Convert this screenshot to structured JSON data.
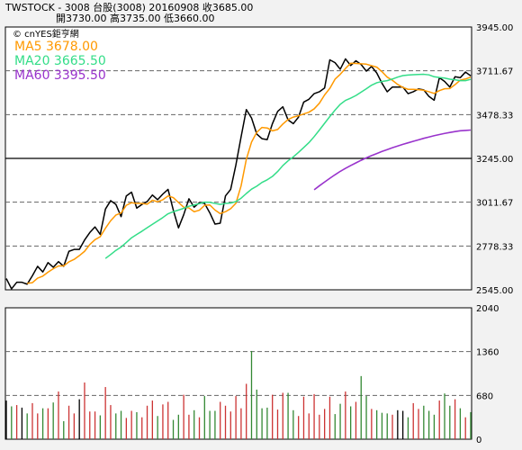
{
  "header": {
    "line1": "TWSTOCK  - 3008  台股(3008)  20160908    收3685.00",
    "line2": "開3730.00     高3735.00     低3660.00"
  },
  "legend": {
    "brand": "© cnYES鉅亨網",
    "ma5": "MA5 3678.00",
    "ma20": "MA20 3665.50",
    "ma60": "MA60 3395.50"
  },
  "colors": {
    "price": "#000000",
    "ma5": "#ff9900",
    "ma20": "#33dd88",
    "ma60": "#9933cc",
    "vol_up": "#cc3333",
    "vol_down": "#338833",
    "vol_flat": "#000000"
  },
  "chart_data": [
    {
      "type": "line",
      "ylim": [
        2545,
        3945
      ],
      "yticks": [
        "3945.00",
        "3711.67",
        "3478.33",
        "3245.00",
        "3011.67",
        "2778.33",
        "2545.00"
      ],
      "ytick_values": [
        3945,
        3711.67,
        3478.33,
        3245,
        3011.67,
        2778.33,
        2545
      ],
      "series": [
        {
          "name": "Price",
          "values": [
            2605,
            2550,
            2585,
            2585,
            2575,
            2620,
            2670,
            2640,
            2690,
            2665,
            2695,
            2670,
            2750,
            2760,
            2760,
            2810,
            2850,
            2880,
            2840,
            2975,
            3020,
            3000,
            2935,
            3045,
            3065,
            2980,
            3000,
            3015,
            3050,
            3025,
            3055,
            3080,
            2970,
            2875,
            2945,
            3030,
            2985,
            3010,
            3005,
            2955,
            2895,
            2900,
            3045,
            3080,
            3210,
            3360,
            3505,
            3460,
            3375,
            3350,
            3345,
            3430,
            3495,
            3520,
            3450,
            3430,
            3465,
            3545,
            3560,
            3590,
            3600,
            3620,
            3770,
            3755,
            3720,
            3775,
            3740,
            3765,
            3745,
            3710,
            3735,
            3700,
            3645,
            3600,
            3625,
            3625,
            3625,
            3590,
            3600,
            3615,
            3610,
            3575,
            3555,
            3675,
            3655,
            3625,
            3680,
            3675,
            3705,
            3685
          ]
        },
        {
          "name": "MA5",
          "values": [
            null,
            null,
            null,
            null,
            2580,
            2583,
            2607,
            2618,
            2639,
            2657,
            2672,
            2672,
            2694,
            2707,
            2727,
            2750,
            2786,
            2812,
            2828,
            2873,
            2913,
            2943,
            2954,
            2995,
            3009,
            3005,
            3005,
            3001,
            3022,
            3014,
            3025,
            3045,
            3036,
            3010,
            2985,
            2981,
            2961,
            2969,
            2995,
            2997,
            2970,
            2951,
            2961,
            2977,
            3006,
            3099,
            3240,
            3332,
            3384,
            3410,
            3407,
            3392,
            3399,
            3428,
            3452,
            3465,
            3472,
            3482,
            3491,
            3509,
            3539,
            3583,
            3618,
            3667,
            3693,
            3724,
            3752,
            3751,
            3749,
            3747,
            3739,
            3731,
            3707,
            3678,
            3661,
            3639,
            3623,
            3613,
            3613,
            3611,
            3608,
            3600,
            3591,
            3606,
            3616,
            3617,
            3638,
            3662,
            3668,
            3678
          ]
        },
        {
          "name": "MA20",
          "values": [
            null,
            null,
            null,
            null,
            null,
            null,
            null,
            null,
            null,
            null,
            null,
            null,
            null,
            null,
            null,
            null,
            null,
            null,
            null,
            2712,
            2733,
            2755,
            2773,
            2797,
            2822,
            2840,
            2857,
            2876,
            2894,
            2912,
            2930,
            2950,
            2961,
            2970,
            2979,
            2990,
            2997,
            3004,
            3012,
            3011,
            3005,
            3000,
            3005,
            3007,
            3015,
            3033,
            3058,
            3081,
            3097,
            3117,
            3131,
            3149,
            3175,
            3207,
            3232,
            3253,
            3277,
            3303,
            3329,
            3361,
            3396,
            3432,
            3468,
            3502,
            3533,
            3554,
            3566,
            3580,
            3598,
            3616,
            3635,
            3648,
            3655,
            3659,
            3668,
            3678,
            3686,
            3689,
            3691,
            3692,
            3693,
            3690,
            3680,
            3676,
            3673,
            3667,
            3664,
            3659,
            3659,
            3666
          ]
        },
        {
          "name": "MA60",
          "values": [
            null,
            null,
            null,
            null,
            null,
            null,
            null,
            null,
            null,
            null,
            null,
            null,
            null,
            null,
            null,
            null,
            null,
            null,
            null,
            null,
            null,
            null,
            null,
            null,
            null,
            null,
            null,
            null,
            null,
            null,
            null,
            null,
            null,
            null,
            null,
            null,
            null,
            null,
            null,
            null,
            null,
            null,
            null,
            null,
            null,
            null,
            null,
            null,
            null,
            null,
            null,
            null,
            null,
            null,
            null,
            null,
            null,
            null,
            null,
            3078,
            3099,
            3119,
            3139,
            3158,
            3176,
            3192,
            3207,
            3221,
            3235,
            3248,
            3260,
            3271,
            3282,
            3292,
            3302,
            3311,
            3320,
            3328,
            3336,
            3344,
            3352,
            3359,
            3366,
            3372,
            3378,
            3383,
            3388,
            3392,
            3394,
            3396
          ]
        }
      ]
    },
    {
      "type": "bar",
      "ylim": [
        0,
        2040
      ],
      "yticks": [
        "2040",
        "1360",
        "680",
        "0"
      ],
      "ytick_values": [
        2040,
        1360,
        680,
        0
      ],
      "values": [
        600,
        510,
        530,
        490,
        400,
        560,
        400,
        480,
        480,
        570,
        740,
        280,
        520,
        400,
        620,
        880,
        430,
        430,
        370,
        810,
        530,
        400,
        440,
        330,
        440,
        420,
        340,
        520,
        600,
        360,
        540,
        580,
        300,
        380,
        690,
        380,
        450,
        340,
        670,
        440,
        440,
        580,
        520,
        430,
        670,
        480,
        860,
        1370,
        770,
        480,
        490,
        690,
        460,
        720,
        720,
        450,
        360,
        660,
        400,
        700,
        380,
        470,
        660,
        390,
        550,
        740,
        510,
        580,
        980,
        670,
        470,
        450,
        410,
        400,
        380,
        450,
        440,
        340,
        560,
        470,
        520,
        440,
        380,
        600,
        710,
        520,
        620,
        480,
        340,
        420
      ]
    }
  ]
}
